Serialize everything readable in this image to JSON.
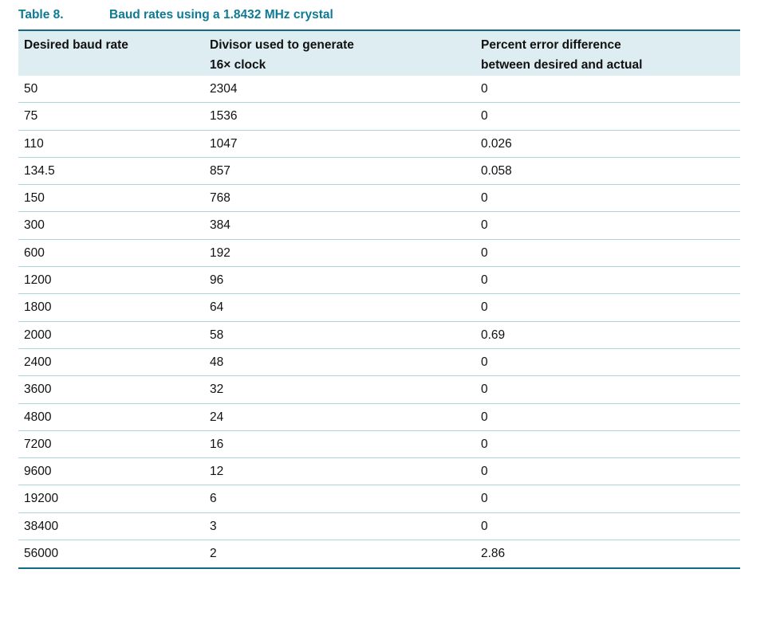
{
  "table": {
    "label": "Table 8.",
    "title": "Baud rates using a 1.8432 MHz crystal",
    "columns": [
      "Desired baud rate",
      "Divisor used to generate\n16× clock",
      "Percent error difference\nbetween desired and actual"
    ],
    "rows": [
      [
        "50",
        "2304",
        "0"
      ],
      [
        "75",
        "1536",
        "0"
      ],
      [
        "110",
        "1047",
        "0.026"
      ],
      [
        "134.5",
        "857",
        "0.058"
      ],
      [
        "150",
        "768",
        "0"
      ],
      [
        "300",
        "384",
        "0"
      ],
      [
        "600",
        "192",
        "0"
      ],
      [
        "1200",
        "96",
        "0"
      ],
      [
        "1800",
        "64",
        "0"
      ],
      [
        "2000",
        "58",
        "0.69"
      ],
      [
        "2400",
        "48",
        "0"
      ],
      [
        "3600",
        "32",
        "0"
      ],
      [
        "4800",
        "24",
        "0"
      ],
      [
        "7200",
        "16",
        "0"
      ],
      [
        "9600",
        "12",
        "0"
      ],
      [
        "19200",
        "6",
        "0"
      ],
      [
        "38400",
        "3",
        "0"
      ],
      [
        "56000",
        "2",
        "2.86"
      ]
    ]
  },
  "colors": {
    "accent": "#0e7a93",
    "rule": "#136a85",
    "header_bg": "#ddedf2",
    "separator": "#aed5dd"
  }
}
